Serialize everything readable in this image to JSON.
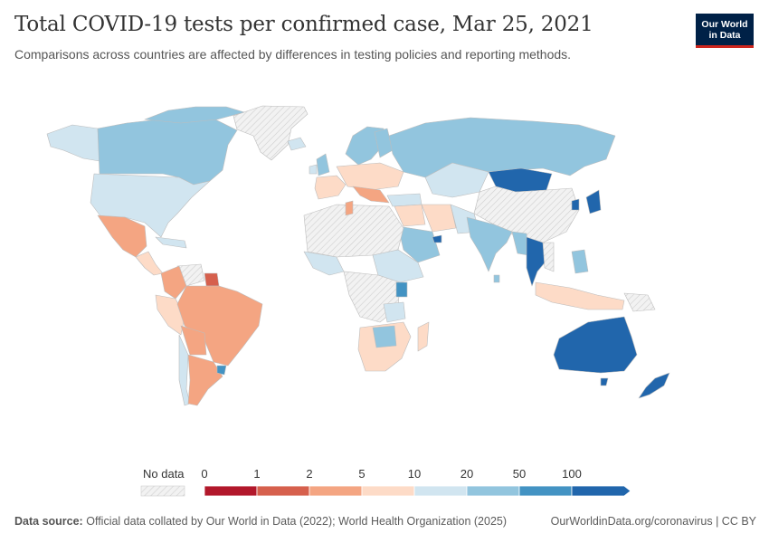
{
  "header": {
    "title": "Total COVID-19 tests per confirmed case, Mar 25, 2021",
    "subtitle": "Comparisons across countries are affected by differences in testing policies and reporting methods."
  },
  "logo": {
    "line1": "Our World",
    "line2": "in Data"
  },
  "legend": {
    "no_data_label": "No data",
    "ticks": [
      "0",
      "1",
      "2",
      "5",
      "10",
      "20",
      "50",
      "100"
    ],
    "bins": [
      {
        "from": "0",
        "to": "1",
        "color": "#b2182b"
      },
      {
        "from": "1",
        "to": "2",
        "color": "#d6604d"
      },
      {
        "from": "2",
        "to": "5",
        "color": "#f4a582"
      },
      {
        "from": "5",
        "to": "10",
        "color": "#fddbc7"
      },
      {
        "from": "10",
        "to": "20",
        "color": "#d1e5f0"
      },
      {
        "from": "20",
        "to": "50",
        "color": "#92c5de"
      },
      {
        "from": "50",
        "to": "100",
        "color": "#4393c3"
      },
      {
        "from": "100",
        "to": "",
        "color": "#2166ac"
      }
    ]
  },
  "map_colors": {
    "no_data": "#e8e8e8",
    "border": "#bcbcbc"
  },
  "regions": [
    {
      "name": "Canada",
      "bin": "20-50"
    },
    {
      "name": "United States",
      "bin": "10-20"
    },
    {
      "name": "Mexico",
      "bin": "2-5"
    },
    {
      "name": "Brazil",
      "bin": "2-5"
    },
    {
      "name": "Argentina",
      "bin": "2-5"
    },
    {
      "name": "Russia",
      "bin": "20-50"
    },
    {
      "name": "Mongolia",
      "bin": "100+"
    },
    {
      "name": "India",
      "bin": "20-50"
    },
    {
      "name": "Iran",
      "bin": "5-10"
    },
    {
      "name": "Thailand",
      "bin": "100+"
    },
    {
      "name": "Australia",
      "bin": "100+"
    },
    {
      "name": "New Zealand",
      "bin": "100+"
    },
    {
      "name": "South Africa",
      "bin": "5-10"
    },
    {
      "name": "Greenland",
      "bin": "no data"
    },
    {
      "name": "China",
      "bin": "no data"
    }
  ],
  "footer": {
    "source_label": "Data source:",
    "source_text": "Official data collated by Our World in Data (2022); World Health Organization (2025)",
    "url": "OurWorldinData.org/coronavirus | CC BY"
  }
}
